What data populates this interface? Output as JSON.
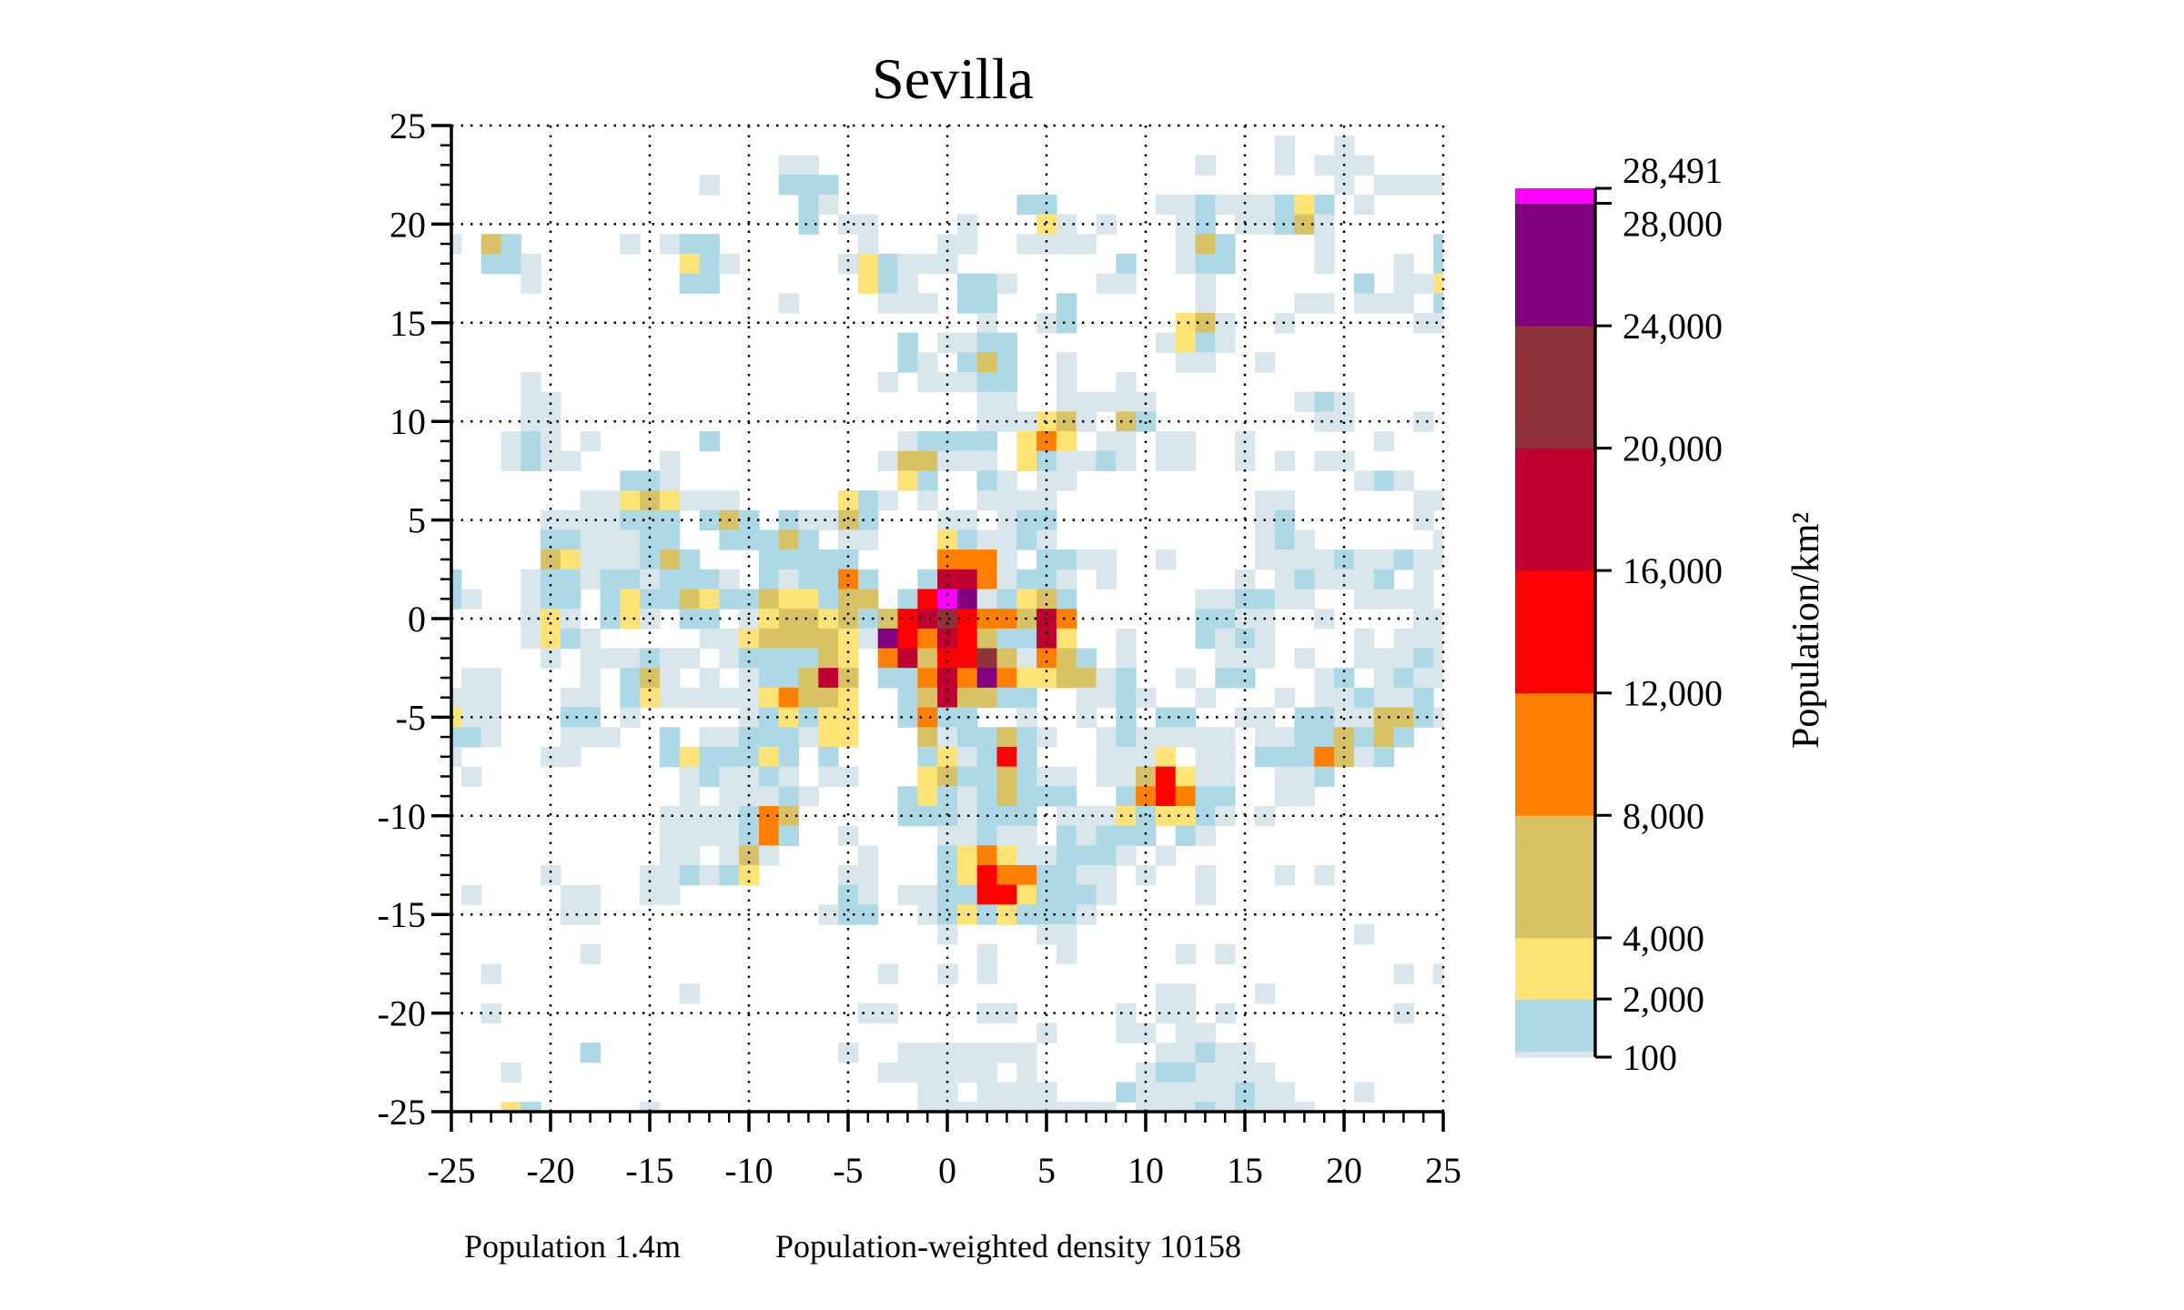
{
  "chart_data": {
    "type": "heatmap",
    "title": "Sevilla",
    "xlabel": "",
    "ylabel": "",
    "xlim": [
      -25,
      25
    ],
    "ylim": [
      -25,
      25
    ],
    "grid": true,
    "grid_style": "dotted",
    "x_ticks": [
      -25,
      -20,
      -15,
      -10,
      -5,
      0,
      5,
      10,
      15,
      20,
      25
    ],
    "x_tick_labels": [
      "-25",
      "-20",
      "-15",
      "-10",
      "-5",
      "0",
      "5",
      "10",
      "15",
      "20",
      "25"
    ],
    "y_ticks": [
      25,
      20,
      15,
      10,
      5,
      0,
      -5,
      -10,
      -15,
      -20,
      -25
    ],
    "y_tick_labels": [
      "25",
      "20",
      "15",
      "10",
      "5",
      "0",
      "-5",
      "-10",
      "-15",
      "-20",
      "-25"
    ],
    "cell_size": 1,
    "levels": [
      {
        "code": "g",
        "min": 100,
        "max": 300,
        "color": "#d9e6ec"
      },
      {
        "code": "b",
        "min": 300,
        "max": 2000,
        "color": "#add8e6"
      },
      {
        "code": "y",
        "min": 2000,
        "max": 4000,
        "color": "#ffe375"
      },
      {
        "code": "k",
        "min": 4000,
        "max": 8000,
        "color": "#d9c264"
      },
      {
        "code": "o",
        "min": 8000,
        "max": 12000,
        "color": "#ff8000"
      },
      {
        "code": "r",
        "min": 12000,
        "max": 16000,
        "color": "#ff0000"
      },
      {
        "code": "c",
        "min": 16000,
        "max": 20000,
        "color": "#c00030"
      },
      {
        "code": "w",
        "min": 20000,
        "max": 24000,
        "color": "#8f333a"
      },
      {
        "code": "p",
        "min": 24000,
        "max": 28000,
        "color": "#800080"
      },
      {
        "code": "m",
        "min": 28000,
        "max": 28491,
        "color": "#ff00ff"
      }
    ],
    "rows_top_to_bottom": [
      "...................................................",
      "..........................................g..g.....",
      ".................gg...................g...g.ggg....",
      ".............g...bbb.........................g.ggggg.....",
      "..................bg.........bb.....ggbgggbyb.g....",
      "..................b.gg....g...yg.g...gb.ggbkg......",
      "g.kb.....g.gbb.......g...gg..gggg....gkb....g.....b",
      "..bbg.......ybg.....gybggg........b..gbb....g...g.b",
      "....g.......bb.......ybg..bbg....gg...g.......b.ggy",
      ".................g....ggg.bb...b......g....gg.ggg.b",
      "...........................g..gb.....ykg..g......gg",
      ".......................b.ggbb.......gybg...........",
      ".......................bg.bkb..g.....gg..g.........",
      "....g.................g.gggbb..g..g.................",
      "....gg.....................gg..ggggg.......gbg........",
      "....gg.....................gggykg.kb........gg...g.....",
      "...gbg.g.....b.........gbbbb.yoy.gg.gg..g......g...",
      "...gbgg....g..........gkkggg.ybggbg.gg..g.g.gg.....",
      ".........bbg...........yb..bg.gg..............gbg",
      ".......ggykyggg.....ybg.g..gggg..........gg......gg",
      ".....ggggbbb.bkb.bggkb...gg.gbb..........gb......g.",
      ".....bbgggbb..bbbkb.gg...ybggbg..........gbg......g",
      ".....kygggbkb...bbbbb....ooog.bbgg..g....ggggbggbgg",
      "b...gbbgbbgbbbg.bgbbob..bccogbbg.g......g.gbgggb.g.",
      "bg..gbb.bybbkybbkyybkk.brmpgbykb......ggbbgg..gggg.",
      "....gyg.byg.bb.gykkykbkrcwrookco......bbgg..g....gg",
      "....gybg.....ggykkkkygprocrkbbcy..g...bgbg....g.ggg",
      ".....g.gggbgg.gbbbbky.ockrrwkgokb.g....ggg.g..gggbg",
      ".gg....g.bkg.g.gbbkck.bbocopoyykkgb..g.bb...gb.gbgg",
      "ggg...gg.bygggggyokky..bkckkbb..ggbg..g...g.ggbggb.",
      "ygg...bb.g.....gbybyy..bobb..g..g.b.bb..gg.bbggkkbg",
      "bbg...ggg..b.ggbbbgyy...kgbbkbg..gbggggg.ggbbkbkb..",
      "g....gg....bybbbyb.b....bygbrb...gggy.gg.bbbokgb...",
      ".g..........gbggbg.gg...ykbbkbgg.ggkrygg..ggb......",
      "............g.gggbg....bybgbkbbb..borobb..gg.......",
      "...........ggggbok.....bbbgbbb.gggybyybg.g.........",
      "...........ggggbob..g....ggbgg.bgbbb.bg............",
      "...........gg.gkg....g...byoyggbbbg.g..............",
      ".....g....ggbgby....gg...byroobbgg.g..g...g.g......",
      ".g....gg..gg........bg.ggbbrrybbbg....g............",
      "......gg...........gbb..gbybybbbg..................",
      ".........................g....gg..............g...",
      ".......g...................g...g.....g.g...........",
      "..g...................g..g.g....................g.g",
      "............g.......................gg...g.........",
      "..g..................gg....gg.....g.gg.g........g..",
      "..............................g...gg.gg............",
      ".......b............g..ggggggg......ggbgg..........",
      "...g..................gggggg.g.....gbbgggg.........",
      "........................gg.gggg...bgggggbgg...g....",
      "...yb.....g.............gggggggggg.gggbgbggg......."
    ],
    "colorbar": {
      "label": "Population/km²",
      "ticks": [
        100,
        2000,
        4000,
        8000,
        12000,
        16000,
        20000,
        24000,
        28000,
        28491
      ],
      "tick_labels": [
        "100",
        "2,000",
        "4,000",
        "8,000",
        "12,000",
        "16,000",
        "20,000",
        "24,000",
        "28,000",
        "28,491"
      ],
      "min": 100,
      "max": 28491
    },
    "footer": {
      "population": "Population 1.4m",
      "weighted_density": "Population-weighted density 10158"
    }
  }
}
